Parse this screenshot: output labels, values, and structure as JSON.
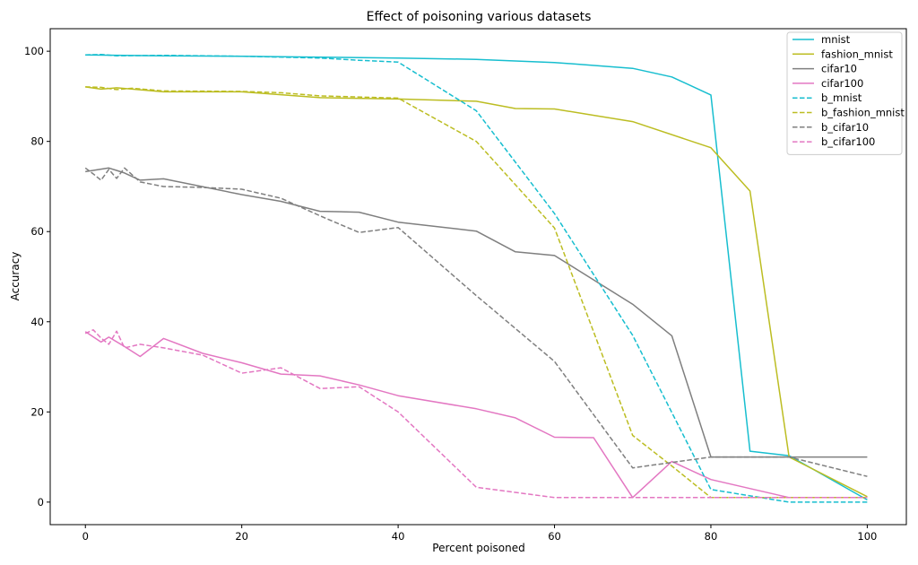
{
  "chart_data": {
    "type": "line",
    "title": "Effect of poisoning various datasets",
    "xlabel": "Percent poisoned",
    "ylabel": "Accuracy",
    "xlim": [
      -4.5,
      105
    ],
    "ylim": [
      -5,
      105
    ],
    "xticks": [
      0,
      20,
      40,
      60,
      80,
      100
    ],
    "yticks": [
      0,
      20,
      40,
      60,
      80,
      100
    ],
    "grid": false,
    "legend_position": "top-right",
    "series": [
      {
        "name": "mnist",
        "color": "#17becf",
        "style": "solid",
        "x": [
          0,
          5,
          10,
          20,
          30,
          40,
          50,
          60,
          70,
          75,
          80,
          85,
          90,
          100
        ],
        "y": [
          99.2,
          99.1,
          99.0,
          98.9,
          98.7,
          98.5,
          98.2,
          97.5,
          96.2,
          94.3,
          90.3,
          11.3,
          10.3,
          0.5
        ]
      },
      {
        "name": "fashion_mnist",
        "color": "#bcbd22",
        "style": "solid",
        "x": [
          0,
          2,
          4,
          6,
          10,
          20,
          30,
          40,
          50,
          55,
          60,
          70,
          80,
          85,
          90,
          100
        ],
        "y": [
          92.1,
          91.6,
          91.9,
          91.6,
          91.0,
          91.0,
          89.7,
          89.4,
          88.9,
          87.3,
          87.2,
          84.4,
          78.6,
          69.0,
          10.0,
          1.2
        ]
      },
      {
        "name": "cifar10",
        "color": "#7f7f7f",
        "style": "solid",
        "x": [
          0,
          3,
          5,
          7,
          10,
          20,
          25,
          30,
          35,
          40,
          50,
          55,
          60,
          70,
          75,
          80,
          90,
          100
        ],
        "y": [
          73.3,
          74.1,
          73.0,
          71.4,
          71.7,
          68.2,
          66.7,
          64.5,
          64.3,
          62.1,
          60.1,
          55.5,
          54.7,
          43.9,
          36.9,
          10.0,
          10.0,
          10.0
        ]
      },
      {
        "name": "cifar100",
        "color": "#e377c2",
        "style": "solid",
        "x": [
          0,
          2,
          3,
          5,
          7,
          10,
          15,
          20,
          25,
          30,
          35,
          40,
          50,
          55,
          60,
          65,
          70,
          75,
          80,
          90,
          100
        ],
        "y": [
          37.8,
          35.5,
          36.6,
          34.5,
          32.3,
          36.3,
          33.0,
          30.9,
          28.4,
          28.0,
          26.0,
          23.6,
          20.7,
          18.7,
          14.4,
          14.3,
          1.0,
          9.0,
          5.0,
          1.0,
          1.0
        ]
      },
      {
        "name": "b_mnist",
        "color": "#17becf",
        "style": "dashed",
        "x": [
          0,
          2,
          4,
          10,
          20,
          30,
          35,
          40,
          50,
          60,
          70,
          80,
          90,
          100
        ],
        "y": [
          99.2,
          99.3,
          99.0,
          99.1,
          98.9,
          98.5,
          98.0,
          97.6,
          86.8,
          64.0,
          37.0,
          2.8,
          0.0,
          0.0
        ]
      },
      {
        "name": "b_fashion_mnist",
        "color": "#bcbd22",
        "style": "dashed",
        "x": [
          0,
          2,
          4,
          6,
          10,
          20,
          25,
          30,
          40,
          50,
          60,
          70,
          75,
          80,
          90,
          100
        ],
        "y": [
          92.1,
          92.0,
          91.5,
          91.8,
          91.2,
          91.1,
          90.8,
          90.1,
          89.6,
          80.0,
          60.8,
          14.8,
          8.0,
          1.0,
          1.0,
          1.0
        ]
      },
      {
        "name": "b_cifar10",
        "color": "#7f7f7f",
        "style": "dashed",
        "x": [
          0,
          1,
          2,
          3,
          4,
          5,
          7,
          10,
          15,
          20,
          25,
          30,
          35,
          40,
          50,
          60,
          70,
          80,
          90,
          100
        ],
        "y": [
          74.1,
          72.8,
          71.4,
          73.8,
          71.8,
          74.1,
          71.0,
          70.0,
          69.8,
          69.4,
          67.4,
          63.5,
          59.8,
          60.9,
          45.8,
          31.2,
          7.6,
          10.0,
          10.0,
          5.7
        ]
      },
      {
        "name": "b_cifar100",
        "color": "#e377c2",
        "style": "dashed",
        "x": [
          0,
          1,
          2,
          3,
          4,
          5,
          7,
          10,
          15,
          20,
          25,
          30,
          35,
          40,
          50,
          60,
          70,
          80,
          90,
          100
        ],
        "y": [
          37.4,
          38.2,
          36.4,
          35.0,
          37.9,
          34.2,
          35.0,
          34.2,
          32.6,
          28.6,
          29.8,
          25.2,
          25.6,
          20.0,
          3.3,
          1.0,
          1.0,
          1.0,
          1.0,
          1.0
        ]
      }
    ]
  }
}
